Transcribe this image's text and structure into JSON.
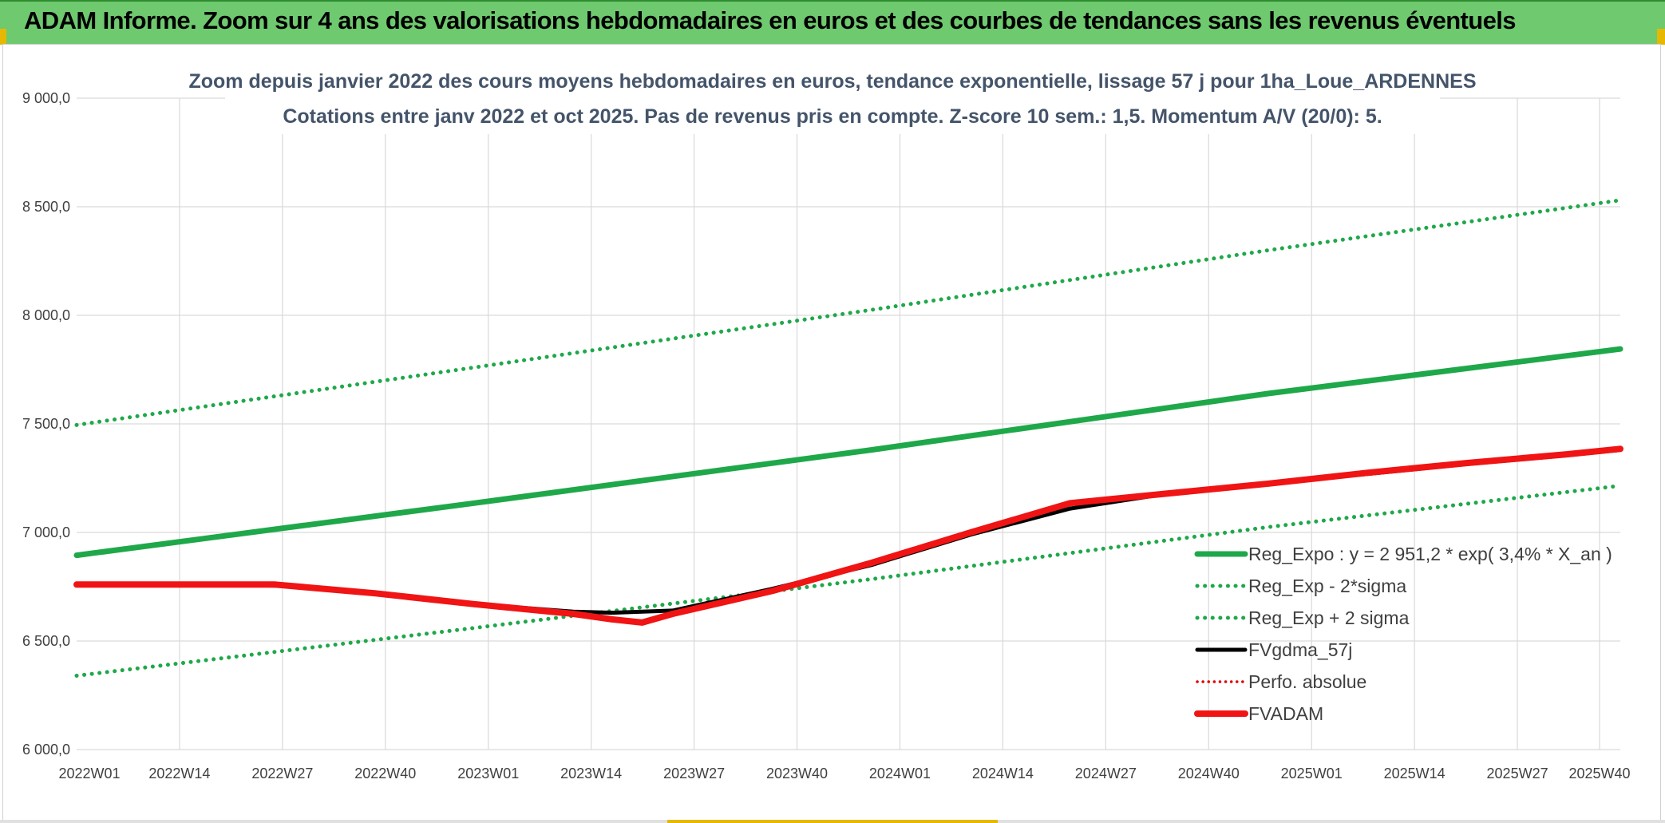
{
  "header": {
    "title": "ADAM Informe. Zoom sur 4 ans des valorisations hebdomadaires en euros et des courbes de tendances sans les revenus éventuels"
  },
  "colors": {
    "banner": "#6fc96f",
    "trend_green": "#1fa84a",
    "band_green": "#1fa84a",
    "fvgdma": "#000000",
    "perfo": "#e00000",
    "fvadam": "#f01414",
    "grid": "#d9d9d9"
  },
  "chart_data": {
    "type": "line",
    "title": "Zoom depuis janvier 2022 des cours moyens hebdomadaires en euros, tendance exponentielle, lissage 57 j pour 1ha_Loue_ARDENNES",
    "subtitle": "Cotations entre janv 2022 et oct 2025. Pas de revenus pris en compte. Z-score 10 sem.: 1,5. Momentum A/V (20/0): 5.",
    "xlabel": "",
    "ylabel": "",
    "ylim": [
      6000,
      9000
    ],
    "yticks": [
      6000,
      6500,
      7000,
      7500,
      8000,
      8500,
      9000
    ],
    "ytick_labels": [
      "6 000,0",
      "6 500,0",
      "7 000,0",
      "7 500,0",
      "8 000,0",
      "8 500,0",
      "9 000,0"
    ],
    "x_tick_labels": [
      "2022W01",
      "2022W14",
      "2022W27",
      "2022W40",
      "2023W01",
      "2023W14",
      "2023W27",
      "2023W40",
      "2024W01",
      "2024W14",
      "2024W27",
      "2024W40",
      "2025W01",
      "2025W14",
      "2025W27",
      "2025W40"
    ],
    "grid": true,
    "legend_position": "bottom-right",
    "x_unit": "week index from 2022W01",
    "series": [
      {
        "name": "Reg_Expo : y = 2 951,2 * exp( 3,4% *  X_an )",
        "style": "solid",
        "x": [
          0,
          52,
          104,
          156,
          202
        ],
        "values": [
          6895,
          7135,
          7380,
          7640,
          7845
        ]
      },
      {
        "name": "Reg_Exp - 2*sigma",
        "style": "dotted",
        "x": [
          0,
          52,
          104,
          156,
          202
        ],
        "values": [
          6340,
          6560,
          6785,
          7025,
          7215
        ]
      },
      {
        "name": "Reg_Exp + 2 sigma",
        "style": "dotted",
        "x": [
          0,
          52,
          104,
          156,
          202
        ],
        "values": [
          7495,
          7760,
          8025,
          8300,
          8530
        ]
      },
      {
        "name": "FVgdma_57j",
        "style": "solid",
        "x": [
          0,
          13,
          26,
          39,
          52,
          65,
          70,
          78,
          91,
          104,
          117,
          130,
          143,
          156,
          169,
          182,
          195,
          202
        ],
        "values": [
          6760,
          6760,
          6755,
          6720,
          6670,
          6635,
          6630,
          6640,
          6740,
          6850,
          6990,
          7110,
          7180,
          7225,
          7270,
          7315,
          7355,
          7380
        ]
      },
      {
        "name": "Perfo. absolue",
        "style": "dotted",
        "x": [],
        "values": []
      },
      {
        "name": "FVADAM",
        "style": "solid",
        "x": [
          0,
          13,
          26,
          39,
          52,
          65,
          70,
          74,
          78,
          91,
          104,
          117,
          130,
          143,
          156,
          169,
          182,
          195,
          202
        ],
        "values": [
          6760,
          6760,
          6760,
          6720,
          6670,
          6625,
          6600,
          6585,
          6625,
          6730,
          6860,
          7000,
          7135,
          7180,
          7225,
          7275,
          7320,
          7360,
          7385
        ]
      }
    ]
  }
}
